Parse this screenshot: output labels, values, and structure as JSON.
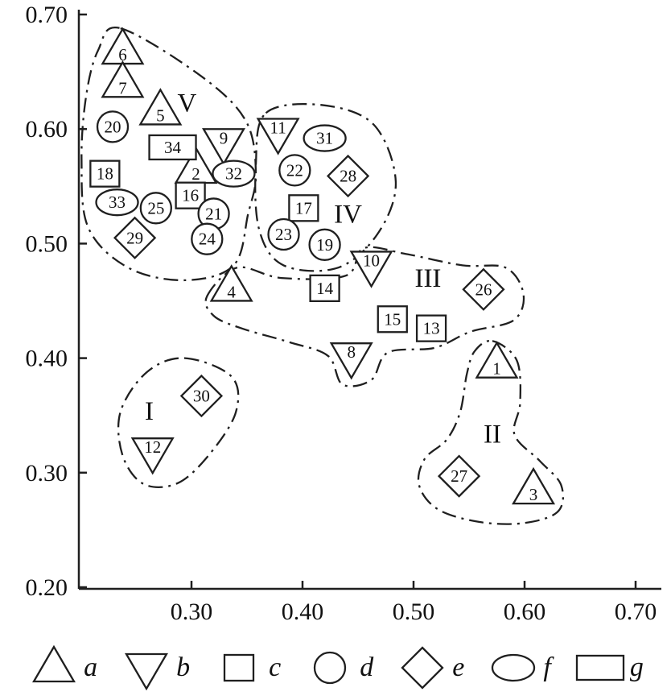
{
  "figure": {
    "background": "#ffffff",
    "stroke_color": "#1f1f1f"
  },
  "chart_data": {
    "type": "scatter",
    "title": "",
    "xlabel": "",
    "ylabel": "",
    "xlim": [
      0.2,
      0.7
    ],
    "ylim": [
      0.2,
      0.7
    ],
    "grid": false,
    "x_ticks": [
      "0.30",
      "0.40",
      "0.50",
      "0.60",
      "0.70"
    ],
    "y_ticks": [
      "0.20",
      "0.30",
      "0.40",
      "0.50",
      "0.60",
      "0.70"
    ],
    "marker_shapes": {
      "a": "triangle-up",
      "b": "triangle-down",
      "c": "square",
      "d": "circle",
      "e": "diamond",
      "f": "ellipse",
      "g": "rectangle"
    },
    "points": [
      {
        "id": "1",
        "shape": "a",
        "x": 0.575,
        "y": 0.395,
        "cluster": "II"
      },
      {
        "id": "2",
        "shape": "a",
        "x": 0.304,
        "y": 0.565,
        "cluster": "V"
      },
      {
        "id": "3",
        "shape": "a",
        "x": 0.608,
        "y": 0.285,
        "cluster": "II"
      },
      {
        "id": "4",
        "shape": "a",
        "x": 0.336,
        "y": 0.462,
        "cluster": "III"
      },
      {
        "id": "5",
        "shape": "a",
        "x": 0.272,
        "y": 0.616,
        "cluster": "V"
      },
      {
        "id": "6",
        "shape": "a",
        "x": 0.238,
        "y": 0.669,
        "cluster": "V"
      },
      {
        "id": "7",
        "shape": "a",
        "x": 0.238,
        "y": 0.64,
        "cluster": "V"
      },
      {
        "id": "8",
        "shape": "b",
        "x": 0.444,
        "y": 0.401,
        "cluster": "III"
      },
      {
        "id": "9",
        "shape": "b",
        "x": 0.329,
        "y": 0.588,
        "cluster": "V"
      },
      {
        "id": "10",
        "shape": "b",
        "x": 0.462,
        "y": 0.481,
        "cluster": "III"
      },
      {
        "id": "11",
        "shape": "b",
        "x": 0.378,
        "y": 0.597,
        "cluster": "IV"
      },
      {
        "id": "12",
        "shape": "b",
        "x": 0.265,
        "y": 0.318,
        "cluster": "I"
      },
      {
        "id": "13",
        "shape": "c",
        "x": 0.516,
        "y": 0.426,
        "cluster": "III"
      },
      {
        "id": "14",
        "shape": "c",
        "x": 0.42,
        "y": 0.461,
        "cluster": "III"
      },
      {
        "id": "15",
        "shape": "c",
        "x": 0.481,
        "y": 0.434,
        "cluster": "III"
      },
      {
        "id": "16",
        "shape": "c",
        "x": 0.299,
        "y": 0.542,
        "cluster": "V"
      },
      {
        "id": "17",
        "shape": "c",
        "x": 0.401,
        "y": 0.531,
        "cluster": "IV"
      },
      {
        "id": "18",
        "shape": "c",
        "x": 0.222,
        "y": 0.561,
        "cluster": "V"
      },
      {
        "id": "19",
        "shape": "d",
        "x": 0.42,
        "y": 0.499,
        "cluster": "IV"
      },
      {
        "id": "20",
        "shape": "d",
        "x": 0.229,
        "y": 0.602,
        "cluster": "V"
      },
      {
        "id": "21",
        "shape": "d",
        "x": 0.32,
        "y": 0.526,
        "cluster": "V"
      },
      {
        "id": "22",
        "shape": "d",
        "x": 0.393,
        "y": 0.564,
        "cluster": "IV"
      },
      {
        "id": "23",
        "shape": "d",
        "x": 0.383,
        "y": 0.508,
        "cluster": "IV"
      },
      {
        "id": "24",
        "shape": "d",
        "x": 0.314,
        "y": 0.504,
        "cluster": "V"
      },
      {
        "id": "25",
        "shape": "d",
        "x": 0.268,
        "y": 0.531,
        "cluster": "V"
      },
      {
        "id": "26",
        "shape": "e",
        "x": 0.563,
        "y": 0.46,
        "cluster": "III"
      },
      {
        "id": "27",
        "shape": "e",
        "x": 0.541,
        "y": 0.297,
        "cluster": "II"
      },
      {
        "id": "28",
        "shape": "e",
        "x": 0.441,
        "y": 0.559,
        "cluster": "IV"
      },
      {
        "id": "29",
        "shape": "e",
        "x": 0.249,
        "y": 0.505,
        "cluster": "V"
      },
      {
        "id": "30",
        "shape": "e",
        "x": 0.309,
        "y": 0.367,
        "cluster": "I"
      },
      {
        "id": "31",
        "shape": "f",
        "x": 0.42,
        "y": 0.592,
        "cluster": "IV"
      },
      {
        "id": "32",
        "shape": "f",
        "x": 0.338,
        "y": 0.561,
        "cluster": "V"
      },
      {
        "id": "33",
        "shape": "f",
        "x": 0.233,
        "y": 0.536,
        "cluster": "V"
      },
      {
        "id": "34",
        "shape": "g",
        "x": 0.283,
        "y": 0.584,
        "cluster": "V"
      }
    ],
    "clusters": [
      {
        "label": "I",
        "label_x": 0.262,
        "label_y": 0.354,
        "outline": [
          [
            0.294,
            0.4
          ],
          [
            0.336,
            0.384
          ],
          [
            0.34,
            0.353
          ],
          [
            0.317,
            0.317
          ],
          [
            0.288,
            0.291
          ],
          [
            0.257,
            0.29
          ],
          [
            0.238,
            0.315
          ],
          [
            0.236,
            0.353
          ],
          [
            0.26,
            0.388
          ]
        ]
      },
      {
        "label": "II",
        "label_x": 0.571,
        "label_y": 0.334,
        "outline": [
          [
            0.571,
            0.415
          ],
          [
            0.593,
            0.398
          ],
          [
            0.596,
            0.361
          ],
          [
            0.591,
            0.333
          ],
          [
            0.614,
            0.31
          ],
          [
            0.633,
            0.289
          ],
          [
            0.63,
            0.266
          ],
          [
            0.599,
            0.256
          ],
          [
            0.559,
            0.257
          ],
          [
            0.522,
            0.268
          ],
          [
            0.505,
            0.289
          ],
          [
            0.51,
            0.312
          ],
          [
            0.53,
            0.329
          ],
          [
            0.542,
            0.353
          ],
          [
            0.548,
            0.386
          ],
          [
            0.555,
            0.406
          ]
        ]
      },
      {
        "label": "III",
        "label_x": 0.513,
        "label_y": 0.47,
        "outline": [
          [
            0.314,
            0.454
          ],
          [
            0.341,
            0.479
          ],
          [
            0.381,
            0.47
          ],
          [
            0.439,
            0.472
          ],
          [
            0.455,
            0.496
          ],
          [
            0.493,
            0.491
          ],
          [
            0.544,
            0.481
          ],
          [
            0.583,
            0.479
          ],
          [
            0.599,
            0.456
          ],
          [
            0.59,
            0.433
          ],
          [
            0.551,
            0.423
          ],
          [
            0.519,
            0.409
          ],
          [
            0.477,
            0.405
          ],
          [
            0.462,
            0.381
          ],
          [
            0.436,
            0.377
          ],
          [
            0.423,
            0.402
          ],
          [
            0.388,
            0.414
          ],
          [
            0.345,
            0.426
          ],
          [
            0.32,
            0.437
          ]
        ]
      },
      {
        "label": "IV",
        "label_x": 0.441,
        "label_y": 0.526,
        "outline": [
          [
            0.367,
            0.614
          ],
          [
            0.417,
            0.621
          ],
          [
            0.464,
            0.604
          ],
          [
            0.484,
            0.554
          ],
          [
            0.468,
            0.509
          ],
          [
            0.432,
            0.479
          ],
          [
            0.383,
            0.481
          ],
          [
            0.361,
            0.512
          ],
          [
            0.358,
            0.569
          ]
        ]
      },
      {
        "label": "V",
        "label_x": 0.296,
        "label_y": 0.623,
        "outline": [
          [
            0.236,
            0.688
          ],
          [
            0.309,
            0.646
          ],
          [
            0.349,
            0.607
          ],
          [
            0.358,
            0.561
          ],
          [
            0.351,
            0.526
          ],
          [
            0.338,
            0.481
          ],
          [
            0.294,
            0.468
          ],
          [
            0.243,
            0.479
          ],
          [
            0.207,
            0.514
          ],
          [
            0.201,
            0.572
          ],
          [
            0.205,
            0.628
          ],
          [
            0.216,
            0.669
          ]
        ]
      }
    ],
    "legend": [
      {
        "marker": "a",
        "label": "a"
      },
      {
        "marker": "b",
        "label": "b"
      },
      {
        "marker": "c",
        "label": "c"
      },
      {
        "marker": "d",
        "label": "d"
      },
      {
        "marker": "e",
        "label": "e"
      },
      {
        "marker": "f",
        "label": "f"
      },
      {
        "marker": "g",
        "label": "g"
      }
    ]
  }
}
